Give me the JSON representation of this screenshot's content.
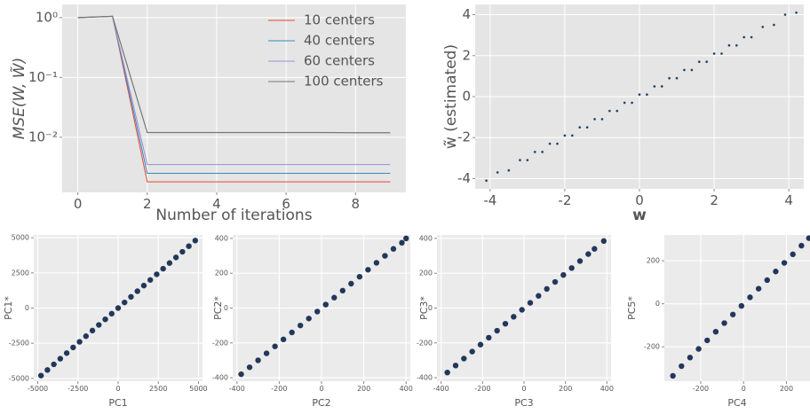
{
  "chart_data": [
    {
      "type": "line",
      "ylabel": "MSE(W, W̃)",
      "xlabel": "Number of iterations",
      "x": [
        0,
        1,
        2,
        3,
        4,
        5,
        6,
        7,
        8,
        9
      ],
      "xlim": [
        -0.45,
        9.45
      ],
      "xticks": [
        0,
        2,
        4,
        6,
        8
      ],
      "ylog": true,
      "ylim": [
        0.0012,
        1.66
      ],
      "yticks": [
        {
          "value": 1,
          "label": "10⁰"
        },
        {
          "value": 0.1,
          "label": "10⁻¹"
        },
        {
          "value": 0.01,
          "label": "10⁻²"
        }
      ],
      "grid": true,
      "legend": "upper right",
      "series": [
        {
          "name": "10 centers",
          "color": "#e24a33",
          "values": [
            1,
            1.05,
            0.0018,
            0.0018,
            0.0018,
            0.0018,
            0.0018,
            0.0018,
            0.0018,
            0.0018
          ]
        },
        {
          "name": "40 centers",
          "color": "#348abd",
          "values": [
            1,
            1.05,
            0.0025,
            0.0025,
            0.0025,
            0.0025,
            0.0025,
            0.0025,
            0.0025,
            0.0025
          ]
        },
        {
          "name": "60 centers",
          "color": "#988ed5",
          "values": [
            1,
            1.05,
            0.0035,
            0.0035,
            0.0035,
            0.0035,
            0.0035,
            0.0035,
            0.0035,
            0.0035
          ]
        },
        {
          "name": "100 centers",
          "color": "#777777",
          "values": [
            1,
            1.05,
            0.012,
            0.012,
            0.012,
            0.012,
            0.012,
            0.012,
            0.0119,
            0.0119
          ]
        }
      ]
    },
    {
      "type": "scatter",
      "xlabel": "w",
      "ylabel": "w̃ (estimated)",
      "color": "#1f3550",
      "xlim": [
        -4.4,
        4.4
      ],
      "xticks": [
        -4,
        -2,
        0,
        2,
        4
      ],
      "ylim": [
        -4.5,
        4.5
      ],
      "yticks": [
        -4,
        -2,
        0,
        2,
        4
      ],
      "grid": true,
      "x": [
        -4.1,
        -3.8,
        -3.5,
        -3.2,
        -3.0,
        -2.8,
        -2.6,
        -2.4,
        -2.2,
        -2.0,
        -1.8,
        -1.6,
        -1.4,
        -1.2,
        -1.0,
        -0.8,
        -0.6,
        -0.4,
        -0.2,
        0,
        0.2,
        0.4,
        0.6,
        0.8,
        1.0,
        1.2,
        1.4,
        1.6,
        1.8,
        2.0,
        2.2,
        2.4,
        2.6,
        2.8,
        3.0,
        3.3,
        3.6,
        3.9,
        4.2
      ],
      "values": [
        -4.1,
        -3.7,
        -3.6,
        -3.1,
        -3.1,
        -2.7,
        -2.7,
        -2.3,
        -2.3,
        -1.9,
        -1.9,
        -1.5,
        -1.5,
        -1.1,
        -1.1,
        -0.7,
        -0.7,
        -0.3,
        -0.3,
        0.1,
        0.1,
        0.5,
        0.5,
        0.9,
        0.9,
        1.3,
        1.3,
        1.7,
        1.7,
        2.1,
        2.1,
        2.5,
        2.5,
        2.9,
        2.9,
        3.4,
        3.5,
        4.0,
        4.1
      ]
    },
    {
      "type": "scatter",
      "xlabel": "PC1",
      "ylabel": "PC1*",
      "color": "#22385a",
      "xlim": [
        -5250,
        5250
      ],
      "xticks": [
        -5000,
        -2500,
        0,
        2500,
        5000
      ],
      "ylim": [
        -5200,
        5200
      ],
      "yticks": [
        -5000,
        -2500,
        0,
        2500,
        5000
      ],
      "grid": true,
      "x": [
        -4800,
        -4400,
        -4000,
        -3600,
        -3200,
        -2800,
        -2400,
        -2000,
        -1600,
        -1200,
        -800,
        -400,
        0,
        400,
        800,
        1200,
        1600,
        2000,
        2400,
        2800,
        3200,
        3600,
        4000,
        4400,
        4800
      ],
      "values": [
        -4800,
        -4400,
        -4000,
        -3600,
        -3200,
        -2800,
        -2400,
        -2000,
        -1600,
        -1200,
        -800,
        -400,
        0,
        400,
        800,
        1200,
        1600,
        2000,
        2400,
        2800,
        3200,
        3600,
        4000,
        4400,
        4800
      ]
    },
    {
      "type": "scatter",
      "xlabel": "PC2",
      "ylabel": "PC2*",
      "color": "#22385a",
      "xlim": [
        -420,
        420
      ],
      "xticks": [
        -400,
        -200,
        0,
        200,
        400
      ],
      "ylim": [
        -420,
        420
      ],
      "yticks": [
        -400,
        -200,
        0,
        200,
        400
      ],
      "grid": true,
      "x": [
        -380,
        -340,
        -300,
        -260,
        -220,
        -180,
        -140,
        -100,
        -60,
        -20,
        20,
        60,
        100,
        140,
        180,
        220,
        260,
        300,
        340,
        380,
        400
      ],
      "values": [
        -380,
        -340,
        -300,
        -260,
        -220,
        -180,
        -140,
        -100,
        -60,
        -20,
        20,
        60,
        100,
        140,
        180,
        220,
        260,
        300,
        340,
        375,
        400
      ]
    },
    {
      "type": "scatter",
      "xlabel": "PC3",
      "ylabel": "PC3*",
      "color": "#22385a",
      "xlim": [
        -420,
        420
      ],
      "xticks": [
        -400,
        -200,
        0,
        200,
        400
      ],
      "ylim": [
        -420,
        420
      ],
      "yticks": [
        -400,
        -200,
        0,
        200,
        400
      ],
      "grid": true,
      "x": [
        -370,
        -330,
        -290,
        -250,
        -210,
        -170,
        -130,
        -90,
        -50,
        -10,
        30,
        70,
        110,
        150,
        190,
        230,
        270,
        310,
        340,
        385
      ],
      "values": [
        -370,
        -330,
        -290,
        -250,
        -210,
        -170,
        -130,
        -90,
        -50,
        -10,
        30,
        70,
        110,
        150,
        190,
        230,
        270,
        310,
        340,
        385
      ]
    },
    {
      "type": "scatter",
      "xlabel": "PC4",
      "ylabel": "PC5*",
      "color": "#22385a",
      "xlim": [
        -370,
        310
      ],
      "xticks": [
        -200,
        0,
        200
      ],
      "ylim": [
        -360,
        320
      ],
      "yticks": [
        -200,
        0,
        200
      ],
      "grid": true,
      "x": [
        -330,
        -290,
        -250,
        -210,
        -170,
        -130,
        -90,
        -50,
        -10,
        30,
        70,
        110,
        150,
        190,
        230,
        270,
        305
      ],
      "values": [
        -335,
        -290,
        -250,
        -210,
        -170,
        -130,
        -90,
        -50,
        -10,
        30,
        70,
        110,
        150,
        190,
        230,
        270,
        305
      ]
    }
  ]
}
